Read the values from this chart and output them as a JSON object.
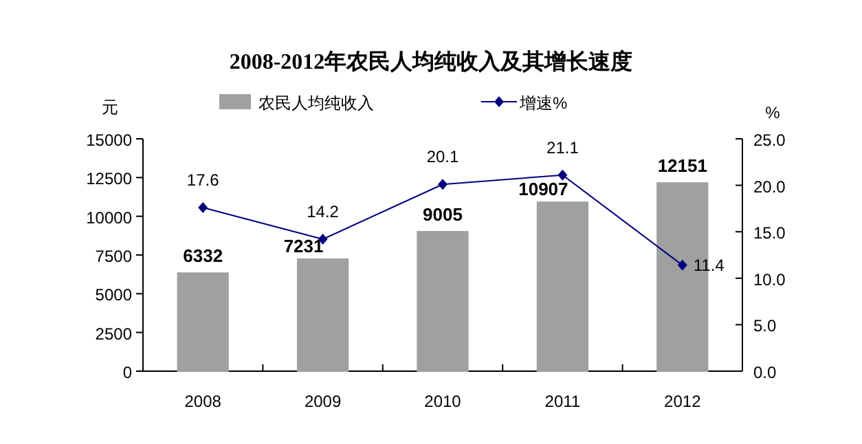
{
  "chart_data": {
    "type": "bar",
    "title": "2008-2012年农民人均纯收入及其增长速度",
    "categories": [
      "2008",
      "2009",
      "2010",
      "2011",
      "2012"
    ],
    "series": [
      {
        "name": "农民人均纯收入",
        "color": "#a0a0a0",
        "values": [
          6332,
          7231,
          9005,
          10907,
          12151
        ]
      },
      {
        "name": "增速%",
        "type": "line",
        "axis": "y2",
        "color": "#000080",
        "marker": "diamond",
        "values": [
          17.6,
          14.2,
          20.1,
          21.1,
          11.4
        ]
      }
    ],
    "ylabel": "元",
    "y2label": "%",
    "ylim": [
      0,
      15000
    ],
    "yticks": [
      0,
      2500,
      5000,
      7500,
      10000,
      12500,
      15000
    ],
    "y2lim": [
      0,
      25
    ],
    "y2ticks": [
      {
        "value": 0,
        "label": "0.0"
      },
      {
        "value": 5,
        "label": "5.0"
      },
      {
        "value": 10,
        "label": "10.0"
      },
      {
        "value": 15,
        "label": "15.0"
      },
      {
        "value": 20,
        "label": "20.0"
      },
      {
        "value": 25,
        "label": "25.0"
      }
    ],
    "data_labels": true,
    "legend": "top",
    "grid": false
  }
}
